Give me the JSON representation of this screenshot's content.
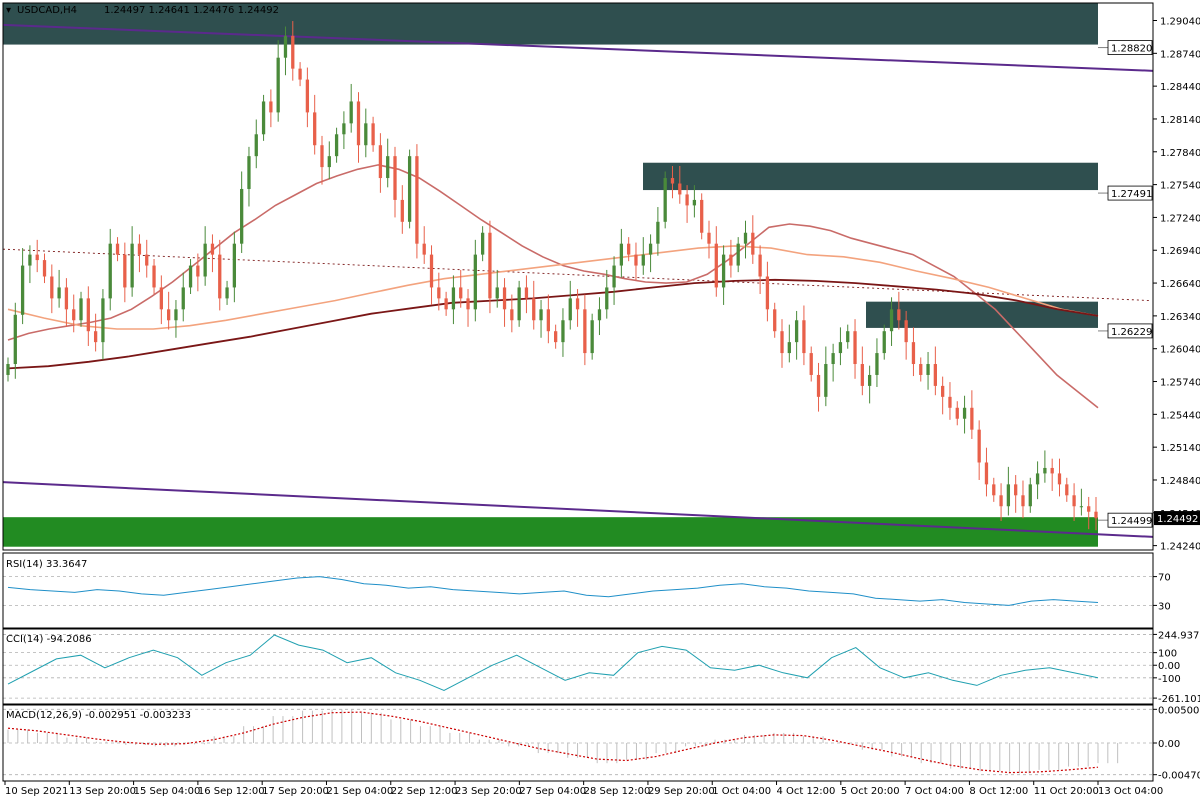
{
  "header": {
    "symbol": "USDCAD,H4",
    "ohlc": "1.24497 1.24641 1.24476 1.24492"
  },
  "colors": {
    "bull": "#4a8a3a",
    "bear": "#e8604a",
    "zone_dark": "#2f4f4f",
    "zone_green": "#228b22",
    "channel": "#5b2a8c",
    "ma_fast": "#c96b68",
    "ma_mid": "#f3a37e",
    "ma_slow": "#7a1616",
    "rsi": "#1f8fc8",
    "cci": "#20a0b0",
    "macd_signal": "#cc0000",
    "macd_hist": "#c0c0c0"
  },
  "chart_data": {
    "type": "candlestick",
    "symbol": "USDCAD",
    "timeframe": "H4",
    "ylim": [
      1.242,
      1.292
    ],
    "y_ticks": [
      "1.29040",
      "1.28740",
      "1.28440",
      "1.28140",
      "1.27840",
      "1.27540",
      "1.27240",
      "1.26940",
      "1.26640",
      "1.26340",
      "1.26040",
      "1.25740",
      "1.25440",
      "1.25140",
      "1.24840",
      "1.24540",
      "1.24240"
    ],
    "x_labels": [
      "10 Sep 2021",
      "13 Sep 20:00",
      "15 Sep 04:00",
      "16 Sep 12:00",
      "17 Sep 20:00",
      "21 Sep 04:00",
      "22 Sep 12:00",
      "23 Sep 20:00",
      "27 Sep 04:00",
      "28 Sep 12:00",
      "29 Sep 20:00",
      "1 Oct 04:00",
      "4 Oct 12:00",
      "5 Oct 20:00",
      "7 Oct 04:00",
      "8 Oct 12:00",
      "11 Oct 20:00",
      "13 Oct 04:00"
    ],
    "closes": [
      1.259,
      1.2635,
      1.268,
      1.269,
      1.2685,
      1.267,
      1.265,
      1.266,
      1.264,
      1.263,
      1.265,
      1.262,
      1.261,
      1.265,
      1.27,
      1.269,
      1.266,
      1.27,
      1.269,
      1.268,
      1.266,
      1.264,
      1.263,
      1.264,
      1.266,
      1.268,
      1.267,
      1.27,
      1.269,
      1.265,
      1.266,
      1.27,
      1.275,
      1.278,
      1.28,
      1.283,
      1.282,
      1.287,
      1.289,
      1.286,
      1.285,
      1.282,
      1.279,
      1.277,
      1.278,
      1.28,
      1.281,
      1.283,
      1.279,
      1.281,
      1.279,
      1.276,
      1.278,
      1.274,
      1.272,
      1.278,
      1.27,
      1.269,
      1.266,
      1.265,
      1.264,
      1.266,
      1.265,
      1.264,
      1.269,
      1.271,
      1.265,
      1.266,
      1.264,
      1.263,
      1.266,
      1.265,
      1.263,
      1.264,
      1.262,
      1.261,
      1.263,
      1.265,
      1.264,
      1.26,
      1.263,
      1.264,
      1.266,
      1.268,
      1.27,
      1.269,
      1.268,
      1.269,
      1.27,
      1.272,
      1.276,
      1.2755,
      1.2745,
      1.2735,
      1.274,
      1.271,
      1.27,
      1.266,
      1.269,
      1.268,
      1.27,
      1.271,
      1.269,
      1.267,
      1.264,
      1.262,
      1.26,
      1.261,
      1.263,
      1.26,
      1.258,
      1.256,
      1.259,
      1.26,
      1.261,
      1.262,
      1.259,
      1.257,
      1.258,
      1.26,
      1.262,
      1.264,
      1.263,
      1.261,
      1.259,
      1.258,
      1.259,
      1.257,
      1.256,
      1.255,
      1.254,
      1.255,
      1.253,
      1.25,
      1.248,
      1.247,
      1.246,
      1.248,
      1.247,
      1.246,
      1.248,
      1.249,
      1.2495,
      1.249,
      1.248,
      1.247,
      1.246,
      1.246,
      1.2455,
      1.2449
    ],
    "ma_fast": [
      1.2612,
      1.2618,
      1.2622,
      1.2625,
      1.2628,
      1.2632,
      1.264,
      1.2652,
      1.2665,
      1.268,
      1.2695,
      1.271,
      1.2722,
      1.2735,
      1.2745,
      1.2755,
      1.2762,
      1.2768,
      1.2772,
      1.2768,
      1.276,
      1.2748,
      1.2735,
      1.2722,
      1.271,
      1.2698,
      1.2688,
      1.268,
      1.2675,
      1.2672,
      1.2668,
      1.2665,
      1.2664,
      1.2665,
      1.2672,
      1.2685,
      1.27,
      1.2715,
      1.2718,
      1.2716,
      1.2712,
      1.2705,
      1.27,
      1.2695,
      1.269,
      1.268,
      1.267,
      1.2655,
      1.264,
      1.262,
      1.26,
      1.258,
      1.2565,
      1.255
    ],
    "ma_mid": [
      1.264,
      1.2632,
      1.2625,
      1.2622,
      1.2622,
      1.2625,
      1.263,
      1.2636,
      1.2642,
      1.2648,
      1.2655,
      1.2662,
      1.2668,
      1.2672,
      1.2676,
      1.268,
      1.2684,
      1.2688,
      1.2692,
      1.2696,
      1.2698,
      1.2696,
      1.269,
      1.2688,
      1.2683,
      1.2675,
      1.2668,
      1.266,
      1.265,
      1.264,
      1.2634
    ],
    "ma_slow": [
      1.2586,
      1.2588,
      1.2592,
      1.2597,
      1.2603,
      1.2609,
      1.2615,
      1.2622,
      1.2629,
      1.2636,
      1.2641,
      1.2646,
      1.2648,
      1.265,
      1.2653,
      1.2656,
      1.266,
      1.2664,
      1.2666,
      1.2667,
      1.2666,
      1.2664,
      1.2661,
      1.2658,
      1.2654,
      1.2648,
      1.264,
      1.2634
    ],
    "zones": [
      {
        "top": 1.292,
        "bottom": 1.2882,
        "label": "1.28820"
      },
      {
        "top": 1.2774,
        "bottom": 1.2749,
        "label": "1.27491"
      },
      {
        "top": 1.2647,
        "bottom": 1.2623,
        "label": "1.26229"
      },
      {
        "top": 1.245,
        "bottom": 1.2423,
        "label": "1.24499"
      }
    ],
    "channel": {
      "upper": [
        1.29,
        1.2858
      ],
      "lower": [
        1.2482,
        1.2432
      ]
    },
    "dotted_line": [
      1.2695,
      1.2648
    ],
    "current_price": "1.24492",
    "indicators": {
      "rsi": {
        "label": "RSI(14) 33.3647",
        "levels": [
          "70",
          "30"
        ],
        "values": [
          55,
          52,
          50,
          48,
          52,
          50,
          46,
          44,
          48,
          52,
          56,
          60,
          64,
          68,
          70,
          66,
          60,
          58,
          54,
          56,
          52,
          50,
          48,
          46,
          48,
          50,
          44,
          42,
          46,
          50,
          52,
          54,
          58,
          60,
          56,
          54,
          50,
          48,
          46,
          40,
          38,
          36,
          38,
          34,
          32,
          30,
          36,
          38,
          36,
          34
        ]
      },
      "cci": {
        "label": "CCI(14) -94.2086",
        "levels": [
          "244.9377",
          "100",
          "0.00",
          "-100",
          "-261.1019"
        ],
        "values": [
          -150,
          -50,
          50,
          80,
          -20,
          60,
          120,
          60,
          -80,
          20,
          80,
          240,
          160,
          120,
          20,
          60,
          -60,
          -120,
          -200,
          -100,
          0,
          80,
          -20,
          -120,
          -60,
          -80,
          100,
          150,
          120,
          -20,
          -40,
          0,
          -60,
          -100,
          60,
          140,
          -20,
          -100,
          -60,
          -120,
          -160,
          -80,
          -40,
          -20,
          -60,
          -100
        ]
      },
      "macd": {
        "label": "MACD(12,26,9) -0.002951 -0.003233",
        "levels": [
          "0.005005",
          "0.00",
          "-0.004708"
        ],
        "hist": [
          0.002,
          0.0015,
          0.0008,
          0.0002,
          -0.0003,
          -0.0005,
          -0.0002,
          0.001,
          0.0025,
          0.004,
          0.0048,
          0.005,
          0.0045,
          0.0035,
          0.0025,
          0.0015,
          0.0005,
          -0.0005,
          -0.0015,
          -0.0022,
          -0.003,
          -0.0025,
          -0.0015,
          -0.0005,
          0.0005,
          0.0012,
          0.0015,
          0.001,
          0.0,
          -0.001,
          -0.002,
          -0.003,
          -0.0038,
          -0.0042,
          -0.0045,
          -0.004,
          -0.0035,
          -0.003
        ],
        "signal": [
          0.0022,
          0.0018,
          0.0012,
          0.0006,
          0.0001,
          -0.0002,
          -0.0001,
          0.0005,
          0.0015,
          0.0028,
          0.0038,
          0.0045,
          0.0046,
          0.004,
          0.0032,
          0.0022,
          0.0012,
          0.0002,
          -0.0008,
          -0.0016,
          -0.0024,
          -0.0026,
          -0.002,
          -0.001,
          0.0,
          0.0008,
          0.0012,
          0.0011,
          0.0004,
          -0.0005,
          -0.0014,
          -0.0024,
          -0.0033,
          -0.004,
          -0.0044,
          -0.0043,
          -0.004,
          -0.0036
        ]
      }
    }
  }
}
